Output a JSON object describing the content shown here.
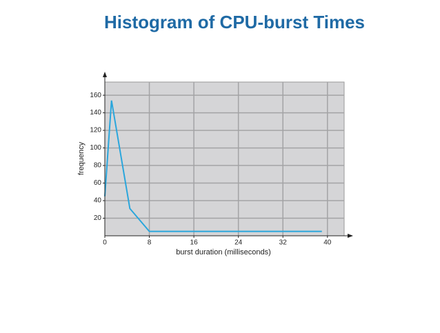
{
  "chart_data": {
    "type": "line",
    "title": "Histogram of CPU-burst Times",
    "x_label": "burst duration (milliseconds)",
    "y_label": "frequency",
    "x": [
      0,
      1.2,
      4.5,
      8,
      39
    ],
    "series": [
      {
        "values": [
          45,
          154,
          31,
          5,
          5
        ],
        "color": "#2aa6dc"
      }
    ],
    "xlim": [
      0,
      43
    ],
    "ylim": [
      0,
      175
    ],
    "xticks": [
      0,
      8,
      16,
      24,
      32,
      40
    ],
    "yticks": [
      20,
      40,
      60,
      80,
      100,
      120,
      140,
      160
    ],
    "grid": true
  }
}
